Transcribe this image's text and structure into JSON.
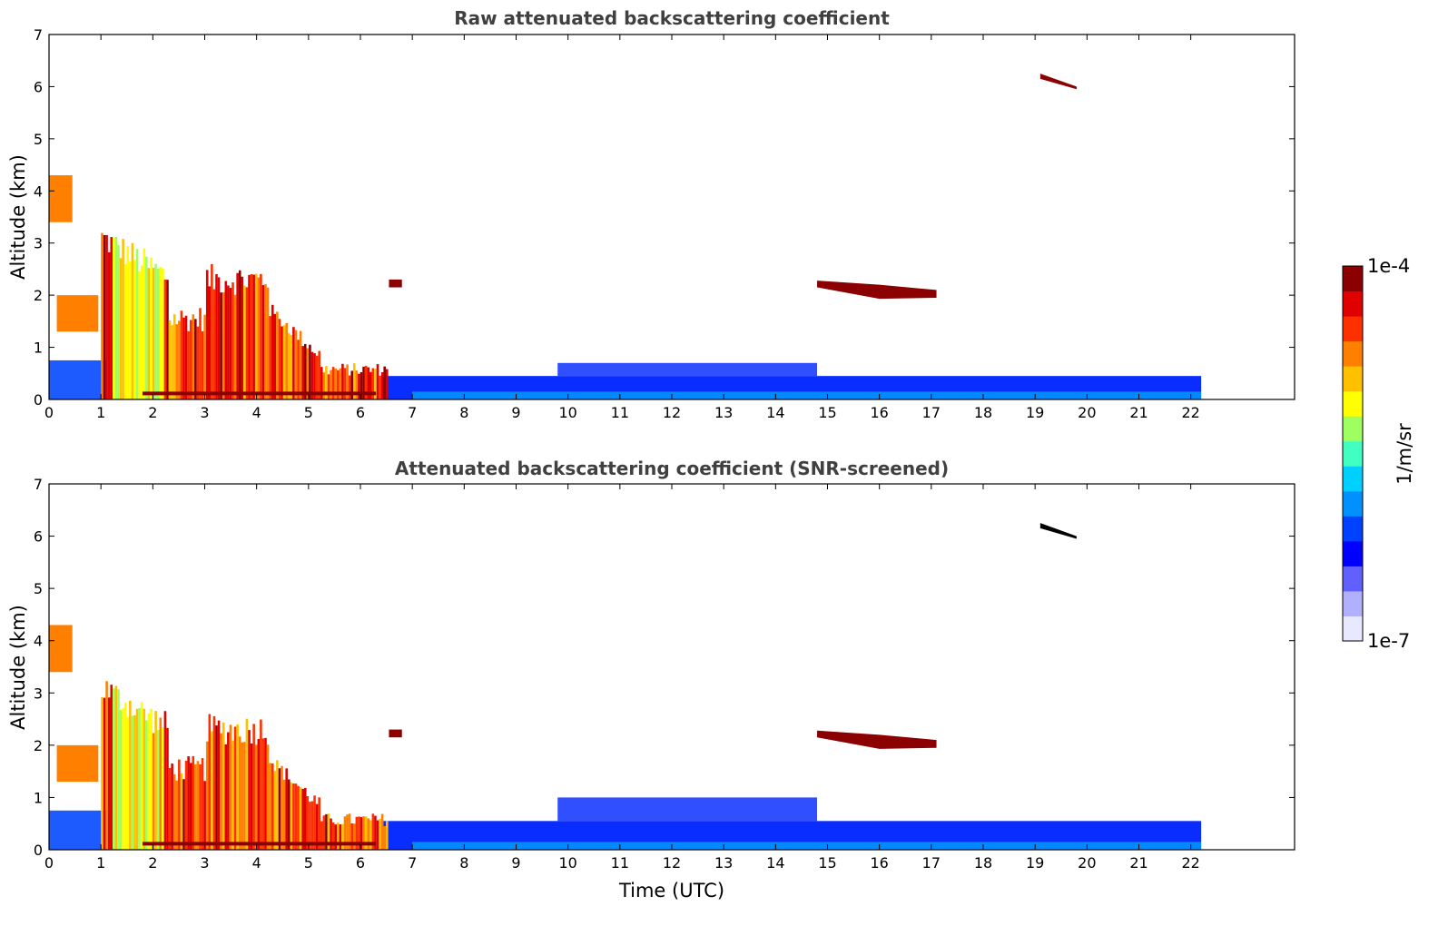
{
  "chart_data": [
    {
      "type": "heatmap",
      "title": "Raw attenuated backscattering coefficient",
      "xlabel": "",
      "ylabel": "Altitude (km)",
      "xlim": [
        0,
        24
      ],
      "ylim": [
        0,
        7
      ],
      "xticks": [
        "0",
        "1",
        "2",
        "3",
        "4",
        "5",
        "6",
        "7",
        "8",
        "9",
        "10",
        "11",
        "12",
        "13",
        "14",
        "15",
        "16",
        "17",
        "18",
        "19",
        "20",
        "21",
        "22"
      ],
      "yticks": [
        "0",
        "1",
        "2",
        "3",
        "4",
        "5",
        "6",
        "7"
      ],
      "data_time_range": [
        0,
        22.2
      ],
      "features": [
        {
          "name": "boundary layer",
          "time": [
            0,
            22.2
          ],
          "altitude_top": 0.5
        },
        {
          "name": "morning cloud/aerosol",
          "time": [
            1,
            6.5
          ],
          "altitude_top": 3.4
        },
        {
          "name": "elevated layer",
          "time": [
            14.8,
            17.1
          ],
          "altitude": 2.1
        },
        {
          "name": "high layer",
          "time": [
            18.2,
            19.8
          ],
          "altitude": 6.4
        }
      ]
    },
    {
      "type": "heatmap",
      "title": "Attenuated backscattering coefficient (SNR-screened)",
      "xlabel": "Time (UTC)",
      "ylabel": "Altitude (km)",
      "xlim": [
        0,
        24
      ],
      "ylim": [
        0,
        7
      ],
      "xticks": [
        "0",
        "1",
        "2",
        "3",
        "4",
        "5",
        "6",
        "7",
        "8",
        "9",
        "10",
        "11",
        "12",
        "13",
        "14",
        "15",
        "16",
        "17",
        "18",
        "19",
        "20",
        "21",
        "22"
      ],
      "yticks": [
        "0",
        "1",
        "2",
        "3",
        "4",
        "5",
        "6",
        "7"
      ],
      "data_time_range": [
        0,
        22.2
      ]
    }
  ],
  "colorbar": {
    "label": "1/m/sr",
    "max_label": "1e-4",
    "min_label": "1e-7",
    "colors": [
      "#e8e8ff",
      "#b0b0ff",
      "#6060ff",
      "#0000ff",
      "#0040ff",
      "#0090ff",
      "#00d0ff",
      "#40ffc0",
      "#a0ff60",
      "#ffff00",
      "#ffc000",
      "#ff8000",
      "#ff3000",
      "#e00000",
      "#8b0000"
    ]
  }
}
